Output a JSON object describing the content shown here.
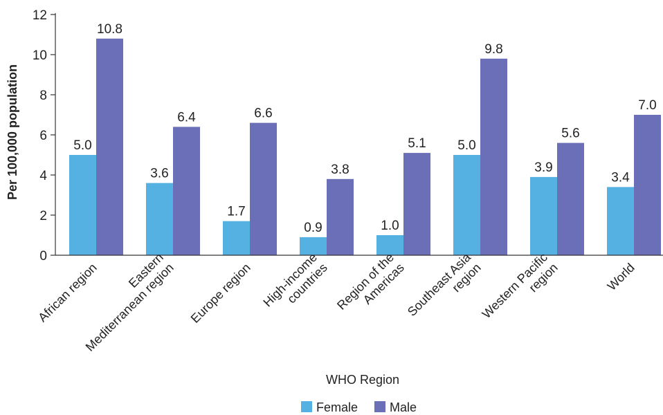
{
  "chart_data": {
    "type": "bar",
    "xlabel": "WHO Region",
    "ylabel": "Per 100,000 population",
    "ylim": [
      0,
      12
    ],
    "yticks": [
      0,
      2,
      4,
      6,
      8,
      10,
      12
    ],
    "categories": [
      [
        "African region"
      ],
      [
        "Eastern",
        "Mediterranean region"
      ],
      [
        "Europe region"
      ],
      [
        "High-income",
        "countries"
      ],
      [
        "Region of the",
        "Americas"
      ],
      [
        "Southeast Asia",
        "region"
      ],
      [
        "Western Pacific",
        "region"
      ],
      [
        "World"
      ]
    ],
    "series": [
      {
        "name": "Female",
        "color": "#56b1e3",
        "values": [
          5.0,
          3.6,
          1.7,
          0.9,
          1.0,
          5.0,
          3.9,
          3.4
        ]
      },
      {
        "name": "Male",
        "color": "#6b6fb8",
        "values": [
          10.8,
          6.4,
          6.6,
          3.8,
          5.1,
          9.8,
          5.6,
          7.0
        ]
      }
    ],
    "legend": "bottom",
    "grid": false
  }
}
